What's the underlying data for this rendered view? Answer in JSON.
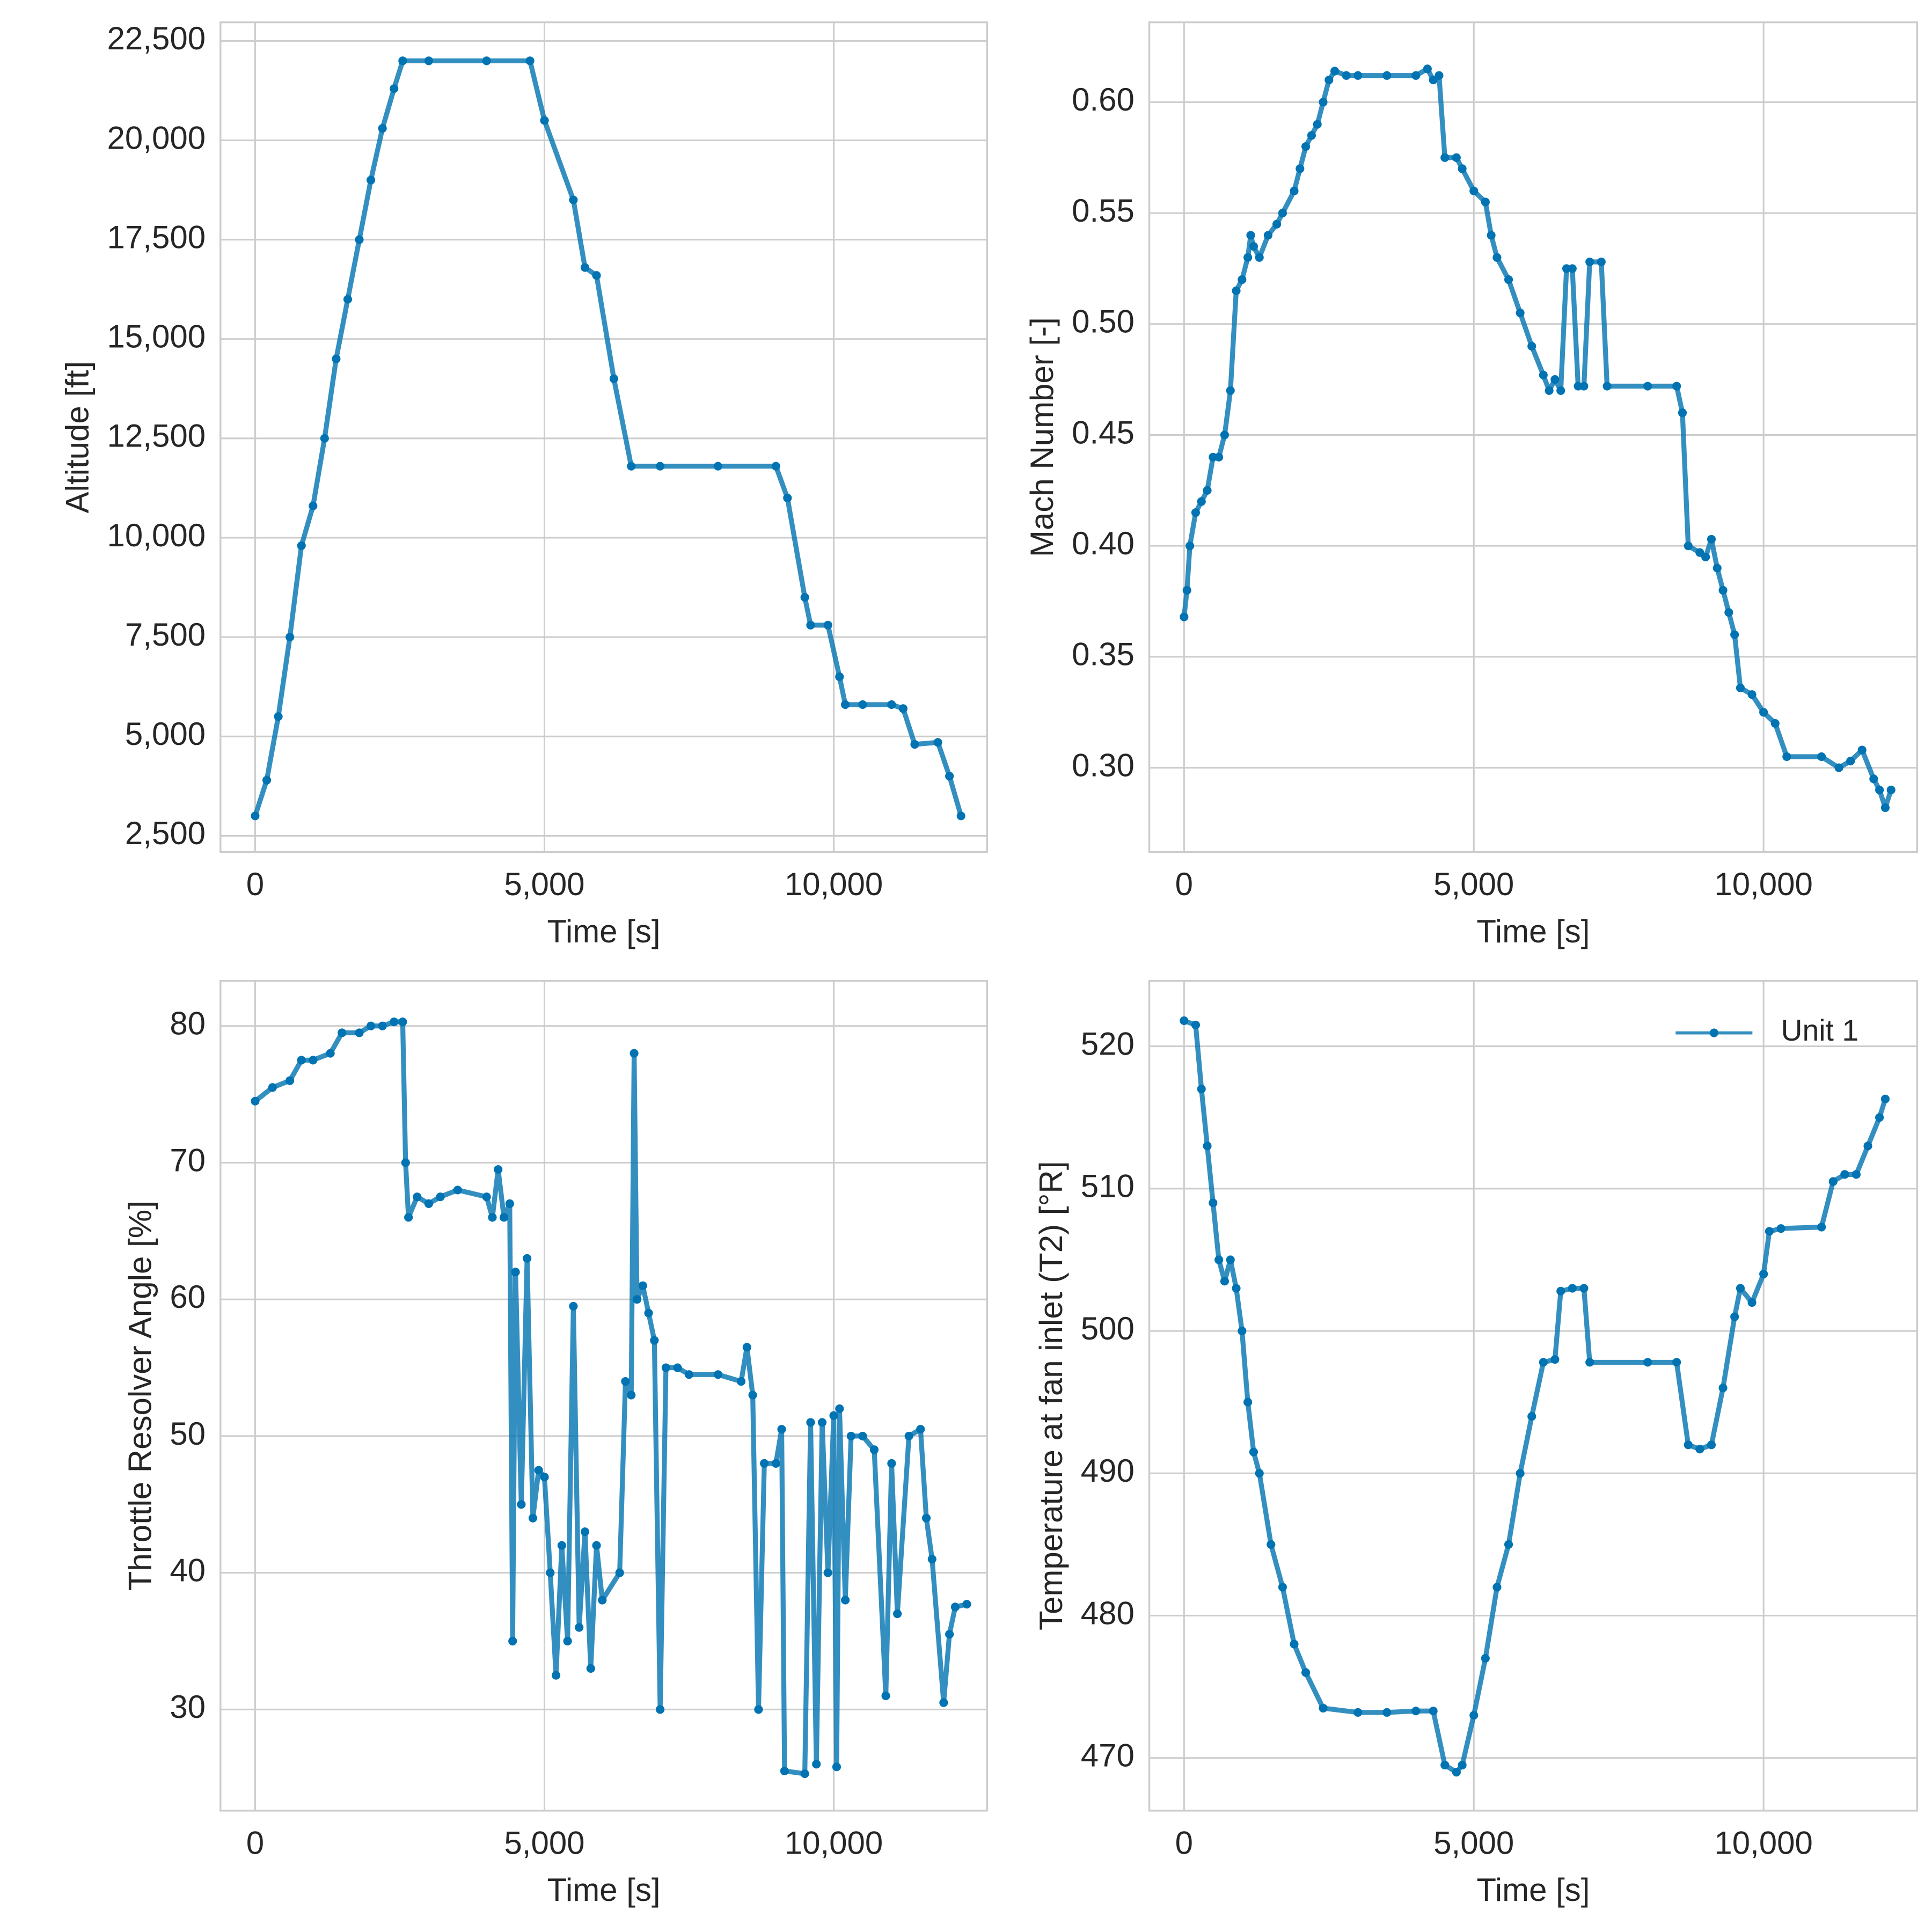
{
  "chart_data": [
    {
      "type": "line",
      "xlabel": "Time [s]",
      "ylabel": "Altitude [ft]",
      "grid": true,
      "xlim": [
        -600,
        12650
      ],
      "ylim": [
        2090,
        22970
      ],
      "xticks": [
        0,
        {
          "value": 5000,
          "label": "5,000"
        },
        {
          "value": 10000,
          "label": "10,000"
        }
      ],
      "yticks": [
        {
          "value": 2500,
          "label": "2,500"
        },
        {
          "value": 5000,
          "label": "5,000"
        },
        {
          "value": 7500,
          "label": "7,500"
        },
        {
          "value": 10000,
          "label": "10,000"
        },
        {
          "value": 12500,
          "label": "12,500"
        },
        {
          "value": 15000,
          "label": "15,000"
        },
        {
          "value": 17500,
          "label": "17,500"
        },
        {
          "value": 20000,
          "label": "20,000"
        },
        {
          "value": 22500,
          "label": "22,500"
        }
      ],
      "x": [
        0,
        200,
        400,
        600,
        800,
        1000,
        1200,
        1400,
        1600,
        1800,
        2000,
        2200,
        2400,
        2550,
        3000,
        4000,
        4750,
        5000,
        5500,
        5700,
        5900,
        6200,
        6500,
        7000,
        8000,
        9000,
        9200,
        9500,
        9600,
        9900,
        10100,
        10200,
        10500,
        11000,
        11200,
        11400,
        11800,
        12000,
        12200
      ],
      "series": [
        {
          "color": "#0173b2",
          "values": [
            3000,
            3900,
            5500,
            7500,
            9800,
            10800,
            12500,
            14500,
            16000,
            17500,
            19000,
            20300,
            21300,
            22000,
            22000,
            22000,
            22000,
            20500,
            18500,
            16800,
            16600,
            14000,
            11800,
            11800,
            11800,
            11800,
            11000,
            8500,
            7800,
            7800,
            6500,
            5800,
            5800,
            5800,
            5700,
            4800,
            4850,
            4000,
            3000
          ]
        }
      ]
    },
    {
      "type": "line",
      "xlabel": "Time [s]",
      "ylabel": "Mach Number [-]",
      "grid": true,
      "xlim": [
        -600,
        12650
      ],
      "ylim": [
        0.262,
        0.636
      ],
      "xticks": [
        0,
        {
          "value": 5000,
          "label": "5,000"
        },
        {
          "value": 10000,
          "label": "10,000"
        }
      ],
      "yticks": [
        {
          "value": 0.3,
          "label": "0.30"
        },
        0.35,
        {
          "value": 0.4,
          "label": "0.40"
        },
        0.45,
        {
          "value": 0.5,
          "label": "0.50"
        },
        0.55,
        {
          "value": 0.6,
          "label": "0.60"
        }
      ],
      "x": [
        0,
        50,
        100,
        200,
        300,
        400,
        500,
        600,
        700,
        800,
        900,
        1000,
        1100,
        1150,
        1200,
        1300,
        1450,
        1600,
        1700,
        1900,
        2000,
        2100,
        2200,
        2300,
        2400,
        2500,
        2600,
        2800,
        3000,
        3500,
        4000,
        4200,
        4300,
        4400,
        4500,
        4700,
        4800,
        5000,
        5200,
        5300,
        5400,
        5600,
        5800,
        6000,
        6200,
        6300,
        6400,
        6500,
        6600,
        6700,
        6800,
        6900,
        7000,
        7200,
        7300,
        8000,
        8500,
        8600,
        8700,
        8900,
        9000,
        9100,
        9200,
        9300,
        9400,
        9500,
        9600,
        9800,
        10000,
        10200,
        10400,
        11000,
        11300,
        11500,
        11700,
        11900,
        12000,
        12100,
        12200
      ],
      "series": [
        {
          "color": "#0173b2",
          "values": [
            0.368,
            0.38,
            0.4,
            0.415,
            0.42,
            0.425,
            0.44,
            0.44,
            0.45,
            0.47,
            0.515,
            0.52,
            0.53,
            0.54,
            0.535,
            0.53,
            0.54,
            0.545,
            0.55,
            0.56,
            0.57,
            0.58,
            0.585,
            0.59,
            0.6,
            0.61,
            0.614,
            0.612,
            0.612,
            0.612,
            0.612,
            0.615,
            0.61,
            0.612,
            0.575,
            0.575,
            0.57,
            0.56,
            0.555,
            0.54,
            0.53,
            0.52,
            0.505,
            0.49,
            0.477,
            0.47,
            0.475,
            0.47,
            0.525,
            0.525,
            0.472,
            0.472,
            0.528,
            0.528,
            0.472,
            0.472,
            0.472,
            0.46,
            0.4,
            0.397,
            0.395,
            0.403,
            0.39,
            0.38,
            0.37,
            0.36,
            0.336,
            0.333,
            0.325,
            0.32,
            0.305,
            0.305,
            0.3,
            0.303,
            0.308,
            0.295,
            0.29,
            0.282,
            0.29
          ]
        }
      ]
    },
    {
      "type": "line",
      "xlabel": "Time [s]",
      "ylabel": "Throttle Resolver Angle [%]",
      "grid": true,
      "xlim": [
        -600,
        12650
      ],
      "ylim": [
        22.6,
        83.3
      ],
      "xticks": [
        0,
        {
          "value": 5000,
          "label": "5,000"
        },
        {
          "value": 10000,
          "label": "10,000"
        }
      ],
      "yticks": [
        30,
        40,
        50,
        60,
        70,
        80
      ],
      "x": [
        0,
        300,
        600,
        800,
        1000,
        1300,
        1500,
        1800,
        2000,
        2200,
        2400,
        2550,
        2600,
        2650,
        2800,
        3000,
        3200,
        3500,
        4000,
        4100,
        4200,
        4300,
        4400,
        4450,
        4500,
        4600,
        4700,
        4800,
        4900,
        5000,
        5100,
        5200,
        5300,
        5400,
        5500,
        5600,
        5700,
        5800,
        5900,
        6000,
        6300,
        6400,
        6500,
        6550,
        6600,
        6700,
        6800,
        6900,
        7000,
        7100,
        7300,
        7500,
        8000,
        8400,
        8500,
        8600,
        8700,
        8800,
        9000,
        9100,
        9150,
        9500,
        9600,
        9700,
        9800,
        9900,
        10000,
        10050,
        10100,
        10200,
        10300,
        10500,
        10700,
        10900,
        11000,
        11100,
        11300,
        11500,
        11600,
        11700,
        11900,
        12000,
        12100,
        12300
      ],
      "series": [
        {
          "color": "#0173b2",
          "values": [
            74.5,
            75.5,
            76,
            77.5,
            77.5,
            78,
            79.5,
            79.5,
            80,
            80,
            80.3,
            80.3,
            70,
            66,
            67.5,
            67,
            67.5,
            68,
            67.5,
            66,
            69.5,
            66,
            67,
            35,
            62,
            45,
            63,
            44,
            47.5,
            47,
            40,
            32.5,
            42,
            35,
            59.5,
            36,
            43,
            33,
            42,
            38,
            40,
            54,
            53,
            78,
            60,
            61,
            59,
            57,
            30,
            55,
            55,
            54.5,
            54.5,
            54,
            56.5,
            53,
            30,
            48,
            48,
            50.5,
            25.5,
            25.3,
            51,
            26,
            51,
            40,
            51.5,
            25.8,
            52,
            38,
            50,
            50,
            49,
            31,
            48,
            37,
            50,
            50.5,
            44,
            41,
            30.5,
            35.5,
            37.5,
            37.7
          ]
        }
      ]
    },
    {
      "type": "line",
      "xlabel": "Time [s]",
      "ylabel": "Temperature at fan inlet (T2) [°R]",
      "grid": true,
      "legend": "upper right",
      "xlim": [
        -600,
        12650
      ],
      "ylim": [
        466.3,
        524.6
      ],
      "xticks": [
        0,
        {
          "value": 5000,
          "label": "5,000"
        },
        {
          "value": 10000,
          "label": "10,000"
        }
      ],
      "yticks": [
        470,
        480,
        490,
        500,
        510,
        520
      ],
      "x": [
        0,
        200,
        300,
        400,
        500,
        600,
        700,
        800,
        900,
        1000,
        1100,
        1200,
        1300,
        1500,
        1700,
        1900,
        2100,
        2400,
        3000,
        3500,
        4000,
        4300,
        4500,
        4700,
        4800,
        5000,
        5200,
        5400,
        5600,
        5800,
        6000,
        6200,
        6400,
        6500,
        6700,
        6900,
        7000,
        8000,
        8500,
        8700,
        8900,
        9100,
        9300,
        9500,
        9600,
        9800,
        10000,
        10100,
        10300,
        11000,
        11200,
        11400,
        11600,
        11800,
        12000,
        12100
      ],
      "series": [
        {
          "name": "Unit 1",
          "color": "#0173b2",
          "values": [
            521.8,
            521.5,
            517,
            513,
            509,
            505,
            503.5,
            505,
            503,
            500,
            495,
            491.5,
            490,
            485,
            482,
            478,
            476,
            473.5,
            473.2,
            473.2,
            473.3,
            473.3,
            469.5,
            469,
            469.5,
            473,
            477,
            482,
            485,
            490,
            494,
            497.8,
            498,
            502.8,
            503,
            503,
            497.8,
            497.8,
            497.8,
            492,
            491.7,
            492,
            496,
            501,
            503,
            502,
            504,
            507,
            507.2,
            507.3,
            510.5,
            511,
            511,
            513,
            515,
            516.3
          ]
        }
      ]
    }
  ]
}
